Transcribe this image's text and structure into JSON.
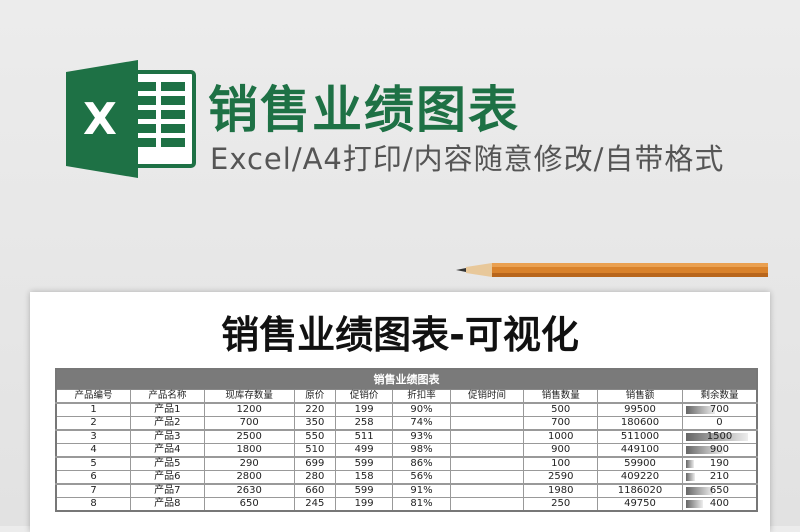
{
  "header": {
    "title": "销售业绩图表",
    "subtitle": "Excel/A4打印/内容随意修改/自带格式",
    "logo_letter": "X",
    "brand_color": "#1e7145"
  },
  "sheet": {
    "title": "销售业绩图表-可视化",
    "table_caption": "销售业绩图表",
    "columns": [
      "产品编号",
      "产品名称",
      "现库存数量",
      "原价",
      "促销价",
      "折扣率",
      "促销时间",
      "销售数量",
      "销售额",
      "剩余数量"
    ],
    "rows": [
      [
        "1",
        "产品1",
        "1200",
        "220",
        "199",
        "90%",
        "",
        "500",
        "99500",
        "700"
      ],
      [
        "2",
        "产品2",
        "700",
        "350",
        "258",
        "74%",
        "",
        "700",
        "180600",
        "0"
      ],
      [
        "3",
        "产品3",
        "2500",
        "550",
        "511",
        "93%",
        "",
        "1000",
        "511000",
        "1500"
      ],
      [
        "4",
        "产品4",
        "1800",
        "510",
        "499",
        "98%",
        "",
        "900",
        "449100",
        "900"
      ],
      [
        "5",
        "产品5",
        "290",
        "699",
        "599",
        "86%",
        "",
        "100",
        "59900",
        "190"
      ],
      [
        "6",
        "产品6",
        "2800",
        "280",
        "158",
        "56%",
        "",
        "2590",
        "409220",
        "210"
      ],
      [
        "7",
        "产品7",
        "2630",
        "660",
        "599",
        "91%",
        "",
        "1980",
        "1186020",
        "650"
      ],
      [
        "8",
        "产品8",
        "650",
        "245",
        "199",
        "81%",
        "",
        "250",
        "49750",
        "400"
      ]
    ],
    "remaining_max": 1500
  }
}
